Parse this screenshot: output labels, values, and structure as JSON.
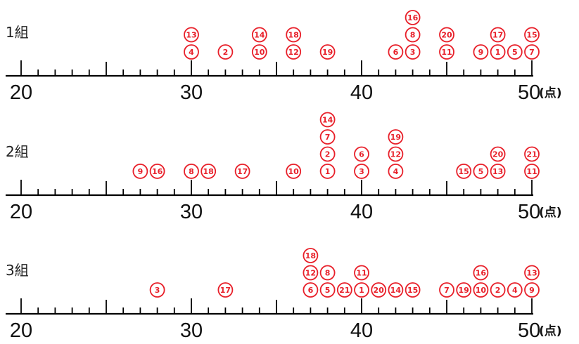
{
  "chart_data": {
    "type": "scatter",
    "x_min": 20,
    "x_max": 50,
    "tick_labels": [
      "20",
      "30",
      "40",
      "50"
    ],
    "unit_label": "(点)",
    "colors": {
      "marker": "#e8202a",
      "axis": "#000000"
    },
    "groups": [
      {
        "name": "1組",
        "points": [
          {
            "student": 1,
            "score": 48
          },
          {
            "student": 2,
            "score": 32
          },
          {
            "student": 3,
            "score": 43
          },
          {
            "student": 4,
            "score": 30
          },
          {
            "student": 5,
            "score": 49
          },
          {
            "student": 6,
            "score": 42
          },
          {
            "student": 7,
            "score": 50
          },
          {
            "student": 8,
            "score": 43
          },
          {
            "student": 9,
            "score": 47
          },
          {
            "student": 10,
            "score": 34
          },
          {
            "student": 11,
            "score": 45
          },
          {
            "student": 12,
            "score": 36
          },
          {
            "student": 13,
            "score": 30
          },
          {
            "student": 14,
            "score": 34
          },
          {
            "student": 15,
            "score": 50
          },
          {
            "student": 16,
            "score": 43
          },
          {
            "student": 17,
            "score": 48
          },
          {
            "student": 18,
            "score": 36
          },
          {
            "student": 19,
            "score": 38
          },
          {
            "student": 20,
            "score": 45
          }
        ]
      },
      {
        "name": "2組",
        "points": [
          {
            "student": 1,
            "score": 38
          },
          {
            "student": 2,
            "score": 38
          },
          {
            "student": 3,
            "score": 40
          },
          {
            "student": 4,
            "score": 42
          },
          {
            "student": 5,
            "score": 47
          },
          {
            "student": 6,
            "score": 40
          },
          {
            "student": 7,
            "score": 38
          },
          {
            "student": 8,
            "score": 30
          },
          {
            "student": 9,
            "score": 27
          },
          {
            "student": 10,
            "score": 36
          },
          {
            "student": 11,
            "score": 50
          },
          {
            "student": 12,
            "score": 42
          },
          {
            "student": 13,
            "score": 48
          },
          {
            "student": 14,
            "score": 38
          },
          {
            "student": 15,
            "score": 46
          },
          {
            "student": 16,
            "score": 28
          },
          {
            "student": 17,
            "score": 33
          },
          {
            "student": 18,
            "score": 31
          },
          {
            "student": 19,
            "score": 42
          },
          {
            "student": 20,
            "score": 48
          },
          {
            "student": 21,
            "score": 50
          }
        ]
      },
      {
        "name": "3組",
        "points": [
          {
            "student": 1,
            "score": 40
          },
          {
            "student": 2,
            "score": 48
          },
          {
            "student": 3,
            "score": 28
          },
          {
            "student": 4,
            "score": 49
          },
          {
            "student": 5,
            "score": 38
          },
          {
            "student": 6,
            "score": 37
          },
          {
            "student": 7,
            "score": 45
          },
          {
            "student": 8,
            "score": 38
          },
          {
            "student": 9,
            "score": 50
          },
          {
            "student": 10,
            "score": 47
          },
          {
            "student": 11,
            "score": 40
          },
          {
            "student": 12,
            "score": 37
          },
          {
            "student": 13,
            "score": 50
          },
          {
            "student": 14,
            "score": 42
          },
          {
            "student": 15,
            "score": 43
          },
          {
            "student": 16,
            "score": 47
          },
          {
            "student": 17,
            "score": 32
          },
          {
            "student": 18,
            "score": 37
          },
          {
            "student": 19,
            "score": 46
          },
          {
            "student": 20,
            "score": 41
          },
          {
            "student": 21,
            "score": 39
          }
        ]
      }
    ]
  }
}
